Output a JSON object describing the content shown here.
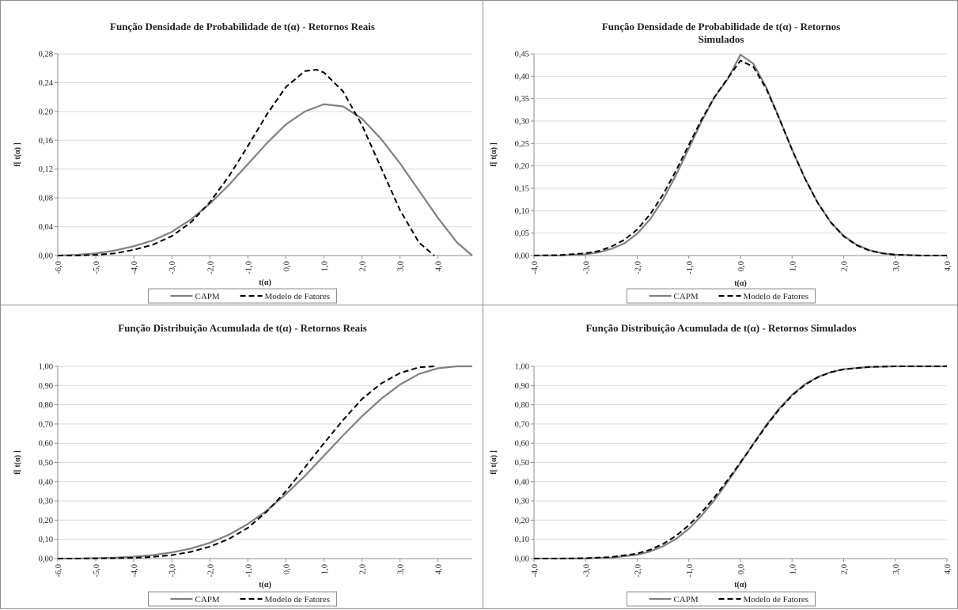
{
  "chart_data": [
    {
      "type": "line",
      "title": "Função Densidade de Probabilidade de t(α) - Retornos Reais",
      "xlabel": "t(α)",
      "ylabel": "f[ t(α) ]",
      "xlim": [
        -6.0,
        4.9
      ],
      "ylim": [
        0,
        0.28
      ],
      "xticks": [
        -6.0,
        -5.0,
        -4.0,
        -3.0,
        -2.0,
        -1.0,
        0.0,
        1.0,
        2.0,
        3.0,
        4.0
      ],
      "xtick_labels": [
        "-6,0",
        "-5,0",
        "-4,0",
        "-3,0",
        "-2,0",
        "-1,0",
        "0,0",
        "1,0",
        "2,0",
        "3,0",
        "4,0"
      ],
      "yticks": [
        0,
        0.04,
        0.08,
        0.12,
        0.16,
        0.2,
        0.24,
        0.28
      ],
      "ytick_labels": [
        "0,00",
        "0,04",
        "0,08",
        "0,12",
        "0,16",
        "0,20",
        "0,24",
        "0,28"
      ],
      "grid": true,
      "legend": "bottom",
      "series": [
        {
          "name": "CAPM",
          "style": "solid",
          "color": "#808080",
          "x": [
            -6.0,
            -5.5,
            -5.0,
            -4.5,
            -4.0,
            -3.5,
            -3.0,
            -2.5,
            -2.0,
            -1.5,
            -1.0,
            -0.5,
            0.0,
            0.5,
            1.0,
            1.5,
            2.0,
            2.5,
            3.0,
            3.5,
            4.0,
            4.5,
            4.9
          ],
          "y": [
            0.0,
            0.001,
            0.003,
            0.007,
            0.013,
            0.021,
            0.033,
            0.05,
            0.072,
            0.098,
            0.127,
            0.156,
            0.182,
            0.2,
            0.21,
            0.207,
            0.19,
            0.162,
            0.128,
            0.09,
            0.052,
            0.018,
            0.0
          ]
        },
        {
          "name": "Modelo de Fatores",
          "style": "dashed",
          "color": "#000000",
          "x": [
            -6.0,
            -5.5,
            -5.0,
            -4.5,
            -4.0,
            -3.5,
            -3.0,
            -2.5,
            -2.0,
            -1.5,
            -1.0,
            -0.5,
            0.0,
            0.5,
            0.8,
            1.0,
            1.5,
            2.0,
            2.5,
            3.0,
            3.5,
            3.9
          ],
          "y": [
            0.0,
            0.0,
            0.001,
            0.003,
            0.008,
            0.015,
            0.027,
            0.046,
            0.074,
            0.11,
            0.152,
            0.196,
            0.234,
            0.256,
            0.258,
            0.254,
            0.228,
            0.181,
            0.122,
            0.063,
            0.018,
            0.0
          ]
        }
      ]
    },
    {
      "type": "line",
      "title": "Função Densidade de Probabilidade de t(α) - Retornos Simulados",
      "xlabel": "t(α)",
      "ylabel": "f[ t(α) ]",
      "xlim": [
        -4.0,
        4.0
      ],
      "ylim": [
        0,
        0.45
      ],
      "xticks": [
        -4.0,
        -3.0,
        -2.0,
        -1.0,
        0.0,
        1.0,
        2.0,
        3.0,
        4.0
      ],
      "xtick_labels": [
        "-4,0",
        "-3,0",
        "-2,0",
        "-1,0",
        "0,0",
        "1,0",
        "2,0",
        "3,0",
        "4,0"
      ],
      "yticks": [
        0,
        0.05,
        0.1,
        0.15,
        0.2,
        0.25,
        0.3,
        0.35,
        0.4,
        0.45
      ],
      "ytick_labels": [
        "0,00",
        "0,05",
        "0,10",
        "0,15",
        "0,20",
        "0,25",
        "0,30",
        "0,35",
        "0,40",
        "0,45"
      ],
      "grid": true,
      "legend": "bottom",
      "series": [
        {
          "name": "CAPM",
          "style": "solid",
          "color": "#808080",
          "x": [
            -4.0,
            -3.5,
            -3.0,
            -2.75,
            -2.5,
            -2.25,
            -2.0,
            -1.75,
            -1.5,
            -1.25,
            -1.0,
            -0.75,
            -0.5,
            -0.25,
            0.0,
            0.25,
            0.5,
            0.75,
            1.0,
            1.25,
            1.5,
            1.75,
            2.0,
            2.25,
            2.5,
            2.75,
            3.0,
            3.5,
            4.0
          ],
          "y": [
            0.0,
            0.0,
            0.003,
            0.007,
            0.015,
            0.027,
            0.049,
            0.081,
            0.125,
            0.179,
            0.239,
            0.3,
            0.354,
            0.393,
            0.448,
            0.428,
            0.375,
            0.307,
            0.236,
            0.172,
            0.117,
            0.074,
            0.044,
            0.024,
            0.012,
            0.005,
            0.002,
            0.0,
            0.0
          ]
        },
        {
          "name": "Modelo de Fatores",
          "style": "dashed",
          "color": "#000000",
          "x": [
            -4.0,
            -3.5,
            -3.0,
            -2.75,
            -2.5,
            -2.25,
            -2.0,
            -1.75,
            -1.5,
            -1.25,
            -1.0,
            -0.75,
            -0.5,
            -0.25,
            0.0,
            0.25,
            0.5,
            0.75,
            1.0,
            1.25,
            1.5,
            1.75,
            2.0,
            2.25,
            2.5,
            2.75,
            3.0,
            3.5,
            4.0
          ],
          "y": [
            0.0,
            0.001,
            0.005,
            0.01,
            0.02,
            0.035,
            0.058,
            0.092,
            0.136,
            0.189,
            0.247,
            0.304,
            0.354,
            0.395,
            0.435,
            0.421,
            0.372,
            0.306,
            0.236,
            0.172,
            0.117,
            0.074,
            0.043,
            0.023,
            0.011,
            0.005,
            0.002,
            0.0,
            0.0
          ]
        }
      ]
    },
    {
      "type": "line",
      "title": "Função Distribuição Acumulada de t(α) - Retornos Reais",
      "xlabel": "t(α)",
      "ylabel": "f[ t(α) ]",
      "xlim": [
        -6.0,
        4.9
      ],
      "ylim": [
        0,
        1.0
      ],
      "xticks": [
        -6.0,
        -5.0,
        -4.0,
        -3.0,
        -2.0,
        -1.0,
        0.0,
        1.0,
        2.0,
        3.0,
        4.0
      ],
      "xtick_labels": [
        "-6,0",
        "-5,0",
        "-4,0",
        "-3,0",
        "-2,0",
        "-1,0",
        "0,0",
        "1,0",
        "2,0",
        "3,0",
        "4,0"
      ],
      "yticks": [
        0,
        0.1,
        0.2,
        0.3,
        0.4,
        0.5,
        0.6,
        0.7,
        0.8,
        0.9,
        1.0
      ],
      "ytick_labels": [
        "0,00",
        "0,10",
        "0,20",
        "0,30",
        "0,40",
        "0,50",
        "0,60",
        "0,70",
        "0,80",
        "0,90",
        "1,00"
      ],
      "grid": true,
      "legend": "bottom",
      "series": [
        {
          "name": "CAPM",
          "style": "solid",
          "color": "#808080",
          "x": [
            -6.0,
            -5.5,
            -5.0,
            -4.5,
            -4.0,
            -3.5,
            -3.0,
            -2.5,
            -2.0,
            -1.5,
            -1.0,
            -0.5,
            0.0,
            0.5,
            1.0,
            1.5,
            2.0,
            2.5,
            3.0,
            3.5,
            4.0,
            4.5,
            4.9
          ],
          "y": [
            0.0,
            0.0,
            0.002,
            0.005,
            0.01,
            0.018,
            0.032,
            0.052,
            0.082,
            0.124,
            0.18,
            0.25,
            0.335,
            0.43,
            0.535,
            0.64,
            0.74,
            0.83,
            0.905,
            0.96,
            0.99,
            1.0,
            1.0
          ]
        },
        {
          "name": "Modelo de Fatores",
          "style": "dashed",
          "color": "#000000",
          "x": [
            -6.0,
            -5.5,
            -5.0,
            -4.5,
            -4.0,
            -3.5,
            -3.0,
            -2.5,
            -2.0,
            -1.5,
            -1.0,
            -0.5,
            0.0,
            0.5,
            1.0,
            1.5,
            2.0,
            2.5,
            3.0,
            3.5,
            3.9
          ],
          "y": [
            0.0,
            0.0,
            0.001,
            0.002,
            0.004,
            0.009,
            0.018,
            0.035,
            0.062,
            0.102,
            0.16,
            0.245,
            0.35,
            0.475,
            0.6,
            0.72,
            0.83,
            0.91,
            0.965,
            0.995,
            1.0
          ]
        }
      ]
    },
    {
      "type": "line",
      "title": "Função Distribuição Acumulada de t(α) - Retornos Simulados",
      "xlabel": "t(α)",
      "ylabel": "f[ t(α) ]",
      "xlim": [
        -4.0,
        4.0
      ],
      "ylim": [
        0,
        1.0
      ],
      "xticks": [
        -4.0,
        -3.0,
        -2.0,
        -1.0,
        0.0,
        1.0,
        2.0,
        3.0,
        4.0
      ],
      "xtick_labels": [
        "-4,0",
        "-3,0",
        "-2,0",
        "-1,0",
        "0,0",
        "1,0",
        "2,0",
        "3,0",
        "4,0"
      ],
      "yticks": [
        0,
        0.1,
        0.2,
        0.3,
        0.4,
        0.5,
        0.6,
        0.7,
        0.8,
        0.9,
        1.0
      ],
      "ytick_labels": [
        "0,00",
        "0,10",
        "0,20",
        "0,30",
        "0,40",
        "0,50",
        "0,60",
        "0,70",
        "0,80",
        "0,90",
        "1,00"
      ],
      "grid": true,
      "legend": "bottom",
      "series": [
        {
          "name": "CAPM",
          "style": "solid",
          "color": "#808080",
          "x": [
            -4.0,
            -3.5,
            -3.0,
            -2.5,
            -2.0,
            -1.75,
            -1.5,
            -1.25,
            -1.0,
            -0.75,
            -0.5,
            -0.25,
            0.0,
            0.25,
            0.5,
            0.75,
            1.0,
            1.25,
            1.5,
            1.75,
            2.0,
            2.5,
            3.0,
            3.5,
            4.0
          ],
          "y": [
            0.0,
            0.0,
            0.001,
            0.005,
            0.02,
            0.037,
            0.064,
            0.102,
            0.155,
            0.224,
            0.306,
            0.398,
            0.497,
            0.598,
            0.695,
            0.78,
            0.852,
            0.907,
            0.945,
            0.97,
            0.985,
            0.997,
            1.0,
            1.0,
            1.0
          ]
        },
        {
          "name": "Modelo de Fatores",
          "style": "dashed",
          "color": "#000000",
          "x": [
            -4.0,
            -3.5,
            -3.0,
            -2.5,
            -2.0,
            -1.75,
            -1.5,
            -1.25,
            -1.0,
            -0.75,
            -0.5,
            -0.25,
            0.0,
            0.25,
            0.5,
            0.75,
            1.0,
            1.25,
            1.5,
            1.75,
            2.0,
            2.5,
            3.0,
            3.5,
            4.0
          ],
          "y": [
            0.0,
            0.0,
            0.002,
            0.008,
            0.026,
            0.046,
            0.076,
            0.118,
            0.173,
            0.241,
            0.32,
            0.408,
            0.5,
            0.595,
            0.69,
            0.776,
            0.848,
            0.904,
            0.943,
            0.969,
            0.984,
            0.997,
            1.0,
            1.0,
            1.0
          ]
        }
      ]
    }
  ]
}
